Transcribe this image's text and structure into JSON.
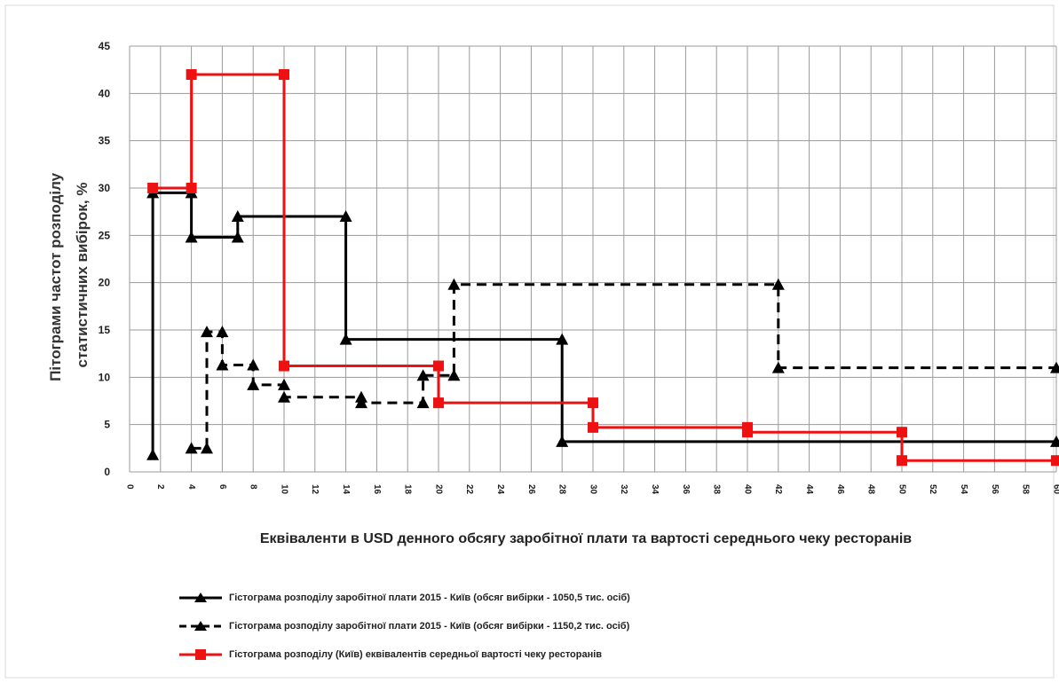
{
  "chart_data": {
    "type": "line",
    "title": "",
    "ylabel": "Пітограми частот розподілу статистичних вибірок, %",
    "xlabel": "Еквіваленти в USD денного обсягу заробітної плати та вартості середнього чеку ресторанів",
    "xlim": [
      0,
      60
    ],
    "ylim": [
      0,
      45
    ],
    "xticks": [
      0,
      2,
      4,
      6,
      8,
      10,
      12,
      14,
      16,
      18,
      20,
      22,
      24,
      26,
      28,
      30,
      32,
      34,
      36,
      38,
      40,
      42,
      44,
      46,
      48,
      50,
      52,
      54,
      56,
      58,
      60
    ],
    "yticks": [
      0,
      5,
      10,
      15,
      20,
      25,
      30,
      35,
      40,
      45
    ],
    "grid": true,
    "legend_position": "bottom",
    "series": [
      {
        "name": "Гістограма розподілу заробітної плати 2015 - Київ (обсяг вибірки - 1050,5 тис. осіб)",
        "color": "#000000",
        "dash": "solid",
        "marker": "triangle",
        "x": [
          1.5,
          1.5,
          4,
          4,
          7,
          7,
          14,
          14,
          28,
          28,
          60
        ],
        "y": [
          1.8,
          29.5,
          29.5,
          24.8,
          24.8,
          27,
          27,
          14,
          14,
          3.2,
          3.2
        ]
      },
      {
        "name": "Гістограма розподілу заробітної плати 2015 - Київ (обсяг вибірки - 1150,2 тис. осіб)",
        "color": "#000000",
        "dash": "dashed",
        "marker": "triangle",
        "x": [
          4,
          5,
          5,
          6,
          6,
          8,
          8,
          10,
          10,
          15,
          15,
          19,
          19,
          21,
          21,
          42,
          42,
          60
        ],
        "y": [
          2.5,
          2.5,
          14.8,
          14.8,
          11.3,
          11.3,
          9.2,
          9.2,
          7.9,
          7.9,
          7.3,
          7.3,
          10.2,
          10.2,
          19.8,
          19.8,
          11,
          11
        ]
      },
      {
        "name": "Гістограма розподілу (Київ) еквівалентів середньої вартості чеку ресторанів",
        "color": "#ee1111",
        "dash": "solid",
        "marker": "square",
        "x": [
          1.5,
          4,
          4,
          10,
          10,
          20,
          20,
          30,
          30,
          40,
          40,
          50,
          50,
          60
        ],
        "y": [
          30,
          30,
          42,
          42,
          11.2,
          11.2,
          7.3,
          7.3,
          4.7,
          4.7,
          4.2,
          4.2,
          1.2,
          1.2
        ]
      }
    ]
  }
}
